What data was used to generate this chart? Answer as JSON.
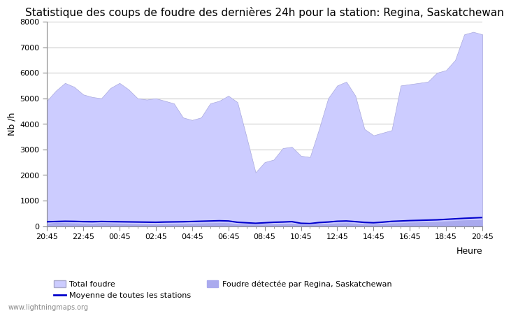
{
  "title": "Statistique des coups de foudre des dernières 24h pour la station: Regina, Saskatchewan",
  "xlabel": "Heure",
  "ylabel": "Nb /h",
  "xlim": [
    0,
    48
  ],
  "ylim": [
    0,
    8000
  ],
  "yticks": [
    0,
    1000,
    2000,
    3000,
    4000,
    5000,
    6000,
    7000,
    8000
  ],
  "xtick_labels": [
    "20:45",
    "22:45",
    "00:45",
    "02:45",
    "04:45",
    "06:45",
    "08:45",
    "10:45",
    "12:45",
    "14:45",
    "16:45",
    "18:45",
    "20:45"
  ],
  "xtick_positions": [
    0,
    4,
    8,
    12,
    16,
    20,
    24,
    28,
    32,
    36,
    40,
    44,
    48
  ],
  "total_foudre_color": "#ccccff",
  "total_foudre_edge": "#aaaadd",
  "local_foudre_color": "#aaaaee",
  "moyenne_color": "#0000cc",
  "background_color": "#ffffff",
  "grid_color": "#cccccc",
  "title_fontsize": 11,
  "watermark": "www.lightningmaps.org",
  "total_foudre_values": [
    4900,
    5300,
    5600,
    5450,
    5150,
    5050,
    5000,
    5400,
    5600,
    5350,
    5000,
    4950,
    5000,
    4900,
    4800,
    4250,
    4150,
    4250,
    4800,
    4900,
    5100,
    4850,
    3500,
    2100,
    2500,
    2600,
    3050,
    3100,
    2750,
    2700,
    3800,
    5000,
    5500,
    5650,
    5100,
    3800,
    3550,
    3650,
    3750,
    5500,
    5550,
    5600,
    5650,
    6000,
    6100,
    6500,
    7500,
    7600,
    7500
  ],
  "local_foudre_values": [
    100,
    150,
    130,
    120,
    110,
    100,
    130,
    120,
    110,
    100,
    90,
    85,
    80,
    90,
    95,
    100,
    110,
    120,
    130,
    140,
    130,
    90,
    80,
    70,
    80,
    90,
    100,
    110,
    70,
    60,
    90,
    100,
    120,
    130,
    110,
    90,
    80,
    100,
    120,
    130,
    150,
    160,
    170,
    180,
    200,
    220,
    240,
    250,
    260
  ],
  "moyenne_values": [
    170,
    180,
    190,
    185,
    175,
    170,
    180,
    175,
    170,
    165,
    160,
    155,
    150,
    160,
    165,
    170,
    180,
    190,
    200,
    210,
    200,
    150,
    130,
    110,
    130,
    150,
    160,
    175,
    110,
    100,
    140,
    160,
    190,
    200,
    175,
    145,
    130,
    155,
    185,
    200,
    215,
    225,
    235,
    245,
    265,
    285,
    305,
    320,
    335
  ]
}
